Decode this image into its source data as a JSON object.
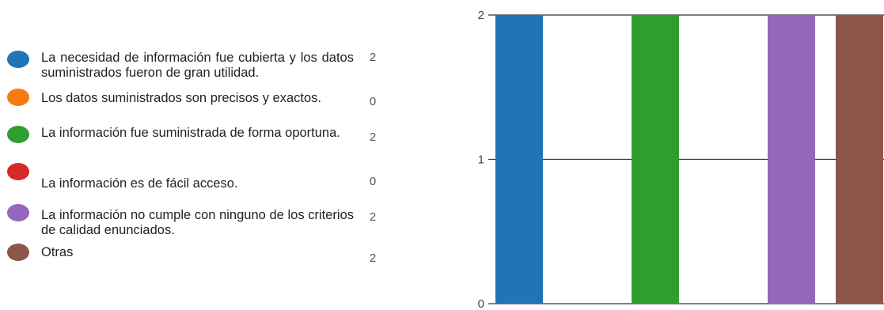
{
  "chart_data": {
    "type": "bar",
    "categories": [
      "La necesidad de información fue cubierta y los datos suministrados fueron de gran utilidad.",
      "Los datos suministrados son precisos y exactos.",
      "La información fue suministrada de forma oportuna.",
      "La información es de fácil acceso.",
      "La información no cumple con ninguno de los criterios de calidad enunciados.",
      "Otras"
    ],
    "values": [
      2,
      0,
      2,
      0,
      2,
      2
    ],
    "colors": [
      "#2174b5",
      "#f57a10",
      "#2e9e31",
      "#d42a27",
      "#9467bd",
      "#8c564b"
    ],
    "ylim": [
      0,
      2
    ],
    "yticks": [
      "0",
      "1",
      "2"
    ],
    "grid": true,
    "legend_position": "left"
  }
}
